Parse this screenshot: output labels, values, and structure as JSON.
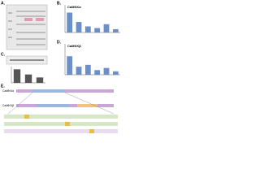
{
  "panels": [
    {
      "label": "A."
    },
    {
      "label": "B.",
      "title": "CaMKKα",
      "values": [
        72,
        38,
        22,
        16,
        30,
        12
      ],
      "ylim": [
        0,
        100
      ],
      "color": "#6d8fc7"
    },
    {
      "label": "C.",
      "values": [
        100,
        62,
        40
      ],
      "ylim": [
        0,
        120
      ],
      "color": "#555555"
    },
    {
      "label": "D.",
      "title": "CaMKKβ",
      "values": [
        60,
        26,
        32,
        15,
        22,
        11
      ],
      "ylim": [
        0,
        100
      ],
      "color": "#6d8fc7"
    },
    {
      "label": "E.",
      "rows": [
        "CaMKKα",
        "CaMKKβ"
      ]
    }
  ]
}
